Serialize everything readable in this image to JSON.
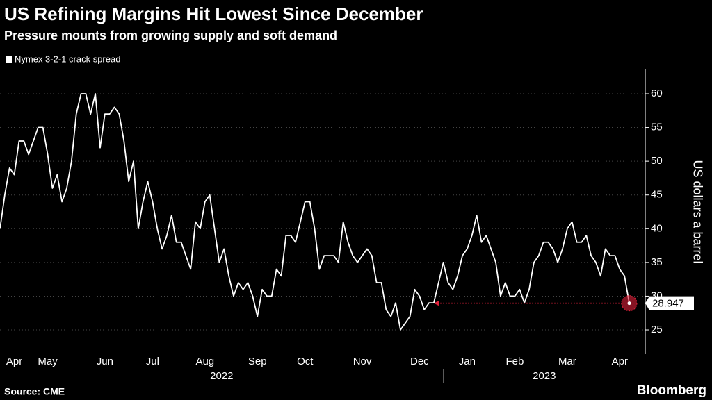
{
  "chart_data": {
    "type": "line",
    "title": "US Refining Margins Hit Lowest Since December",
    "subtitle": "Pressure mounts from growing supply and soft demand",
    "y_axis_label": "US dollars a barrel",
    "source": "Source: CME",
    "brand": "Bloomberg",
    "year_labels": [
      "2022",
      "2023"
    ],
    "categories": [
      null,
      null,
      null,
      "Apr",
      null,
      null,
      null,
      null,
      null,
      null,
      "May",
      null,
      null,
      null,
      null,
      null,
      null,
      null,
      null,
      null,
      null,
      null,
      "Jun",
      null,
      null,
      null,
      null,
      null,
      null,
      null,
      null,
      null,
      "Jul",
      null,
      null,
      null,
      null,
      null,
      null,
      null,
      null,
      null,
      null,
      "Aug",
      null,
      null,
      null,
      null,
      null,
      null,
      null,
      null,
      null,
      null,
      "Sep",
      null,
      null,
      null,
      null,
      null,
      null,
      null,
      null,
      null,
      "Oct",
      null,
      null,
      null,
      null,
      null,
      null,
      null,
      null,
      null,
      null,
      null,
      "Nov",
      null,
      null,
      null,
      null,
      null,
      null,
      null,
      null,
      null,
      null,
      null,
      "Dec",
      null,
      null,
      null,
      null,
      null,
      null,
      null,
      null,
      null,
      "Jan",
      null,
      null,
      null,
      null,
      null,
      null,
      null,
      null,
      null,
      "Feb",
      null,
      null,
      null,
      null,
      null,
      null,
      null,
      null,
      null,
      null,
      "Mar",
      null,
      null,
      null,
      null,
      null,
      null,
      null,
      null,
      null,
      null,
      "Apr",
      null,
      null
    ],
    "series": [
      {
        "name": "Nymex 3-2-1 crack spread",
        "color": "#ffffff",
        "values": [
          40,
          45,
          49,
          48,
          53,
          53,
          51,
          53,
          55,
          55,
          51,
          46,
          48,
          44,
          46,
          50,
          57,
          60,
          60,
          57,
          60,
          52,
          57,
          57,
          58,
          57,
          53,
          47,
          50,
          40,
          44,
          47,
          44,
          40,
          37,
          39,
          42,
          38,
          38,
          36,
          34,
          41,
          40,
          44,
          45,
          40,
          35,
          37,
          33,
          30,
          32,
          31,
          32,
          30,
          27,
          31,
          30,
          30,
          34,
          33,
          39,
          39,
          38,
          41,
          44,
          44,
          40,
          34,
          36,
          36,
          36,
          35,
          41,
          38,
          36,
          35,
          36,
          37,
          36,
          32,
          32,
          28,
          27,
          29,
          25,
          26,
          27,
          31,
          30,
          28,
          29,
          29,
          32,
          35,
          32,
          31,
          33,
          36,
          37,
          39,
          42,
          38,
          39,
          37,
          35,
          30,
          32,
          30,
          30,
          31,
          29,
          31,
          35,
          36,
          38,
          38,
          37,
          35,
          37,
          40,
          41,
          38,
          38,
          39,
          36,
          35,
          33,
          37,
          36,
          36,
          34,
          33,
          28.947
        ]
      }
    ],
    "annotation_color": "#e0213a",
    "ylim": [
      21.4,
      63.6
    ],
    "yticks": [
      25,
      30,
      35,
      40,
      45,
      50,
      55,
      60
    ],
    "grid": true
  }
}
